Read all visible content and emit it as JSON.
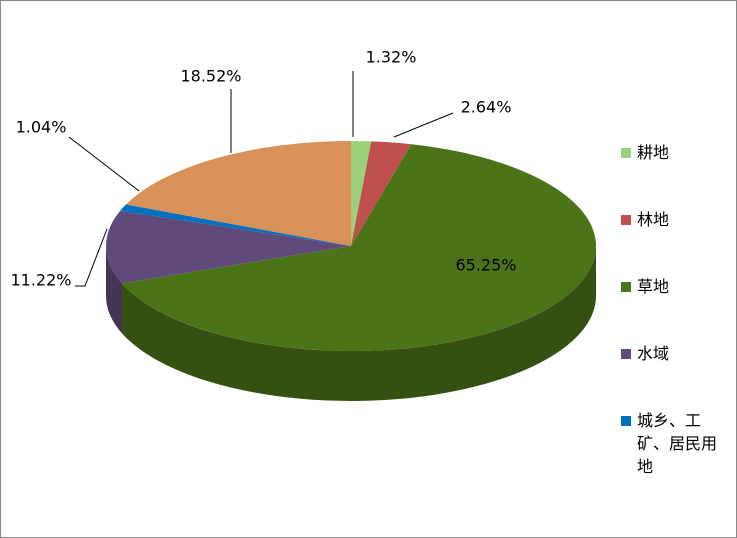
{
  "chart_data": {
    "type": "pie3d",
    "categories": [
      "耕地",
      "林地",
      "草地",
      "水域",
      "城乡、工矿、居民用地",
      null
    ],
    "values": [
      1.32,
      2.64,
      65.25,
      11.22,
      1.04,
      18.52
    ],
    "value_labels": [
      "1.32%",
      "2.64%",
      "65.25%",
      "11.22%",
      "1.04%",
      "18.52%"
    ],
    "colors": [
      "#9bd17a",
      "#c0504d",
      "#4b7418",
      "#604a7b",
      "#0070c0",
      "#d9915a"
    ]
  }
}
